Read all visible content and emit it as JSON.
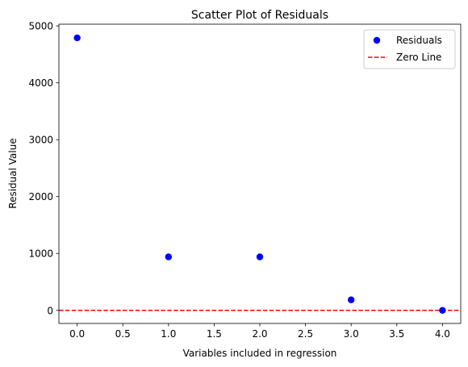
{
  "chart_data": {
    "type": "scatter",
    "title": "Scatter Plot of Residuals",
    "xlabel": "Variables included in regression",
    "ylabel": "Residual Value",
    "xlim": [
      -0.2,
      4.2
    ],
    "ylim": [
      -230,
      5030
    ],
    "x_ticks": [
      0.0,
      0.5,
      1.0,
      1.5,
      2.0,
      2.5,
      3.0,
      3.5,
      4.0
    ],
    "x_tick_labels": [
      "0.0",
      "0.5",
      "1.0",
      "1.5",
      "2.0",
      "2.5",
      "3.0",
      "3.5",
      "4.0"
    ],
    "y_ticks": [
      0,
      1000,
      2000,
      3000,
      4000,
      5000
    ],
    "y_tick_labels": [
      "0",
      "1000",
      "2000",
      "3000",
      "4000",
      "5000"
    ],
    "grid": false,
    "legend_position": "top-right",
    "series": [
      {
        "name": "Residuals",
        "kind": "scatter",
        "color": "#0000ff",
        "x": [
          0,
          1,
          2,
          3,
          4
        ],
        "y": [
          4790,
          940,
          940,
          185,
          0
        ]
      }
    ],
    "reference_lines": [
      {
        "name": "Zero Line",
        "kind": "hline",
        "y": 0,
        "color": "#ff0000",
        "style": "dashed"
      }
    ]
  }
}
